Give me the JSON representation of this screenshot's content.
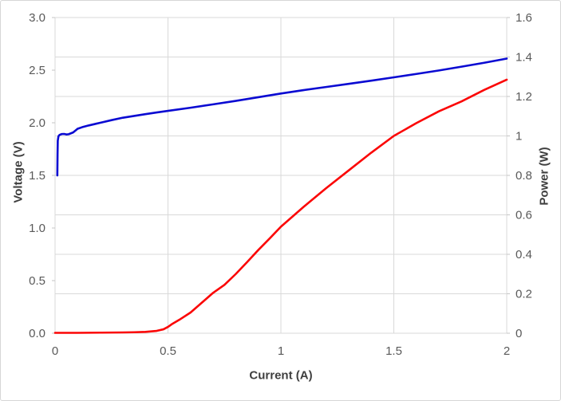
{
  "chart_data": {
    "type": "line",
    "title": "",
    "xlabel": "Current (A)",
    "grid": true,
    "legend": "none",
    "x_axis": {
      "ticks": [
        "0",
        "0.5",
        "1",
        "1.5",
        "2"
      ],
      "tick_values": [
        0,
        0.5,
        1,
        1.5,
        2
      ],
      "lim": [
        0,
        2
      ]
    },
    "left_axis": {
      "label": "Voltage (V)",
      "ticks": [
        "3.0",
        "2.5",
        "2.0",
        "1.5",
        "1.0",
        "0.5",
        "0.0"
      ],
      "tick_values": [
        3.0,
        2.5,
        2.0,
        1.5,
        1.0,
        0.5,
        0.0
      ],
      "lim": [
        0,
        3.0
      ]
    },
    "right_axis": {
      "label": "Power (W)",
      "ticks": [
        "1.6",
        "1.4",
        "1.2",
        "1",
        "0.8",
        "0.6",
        "0.4",
        "0.2",
        "0"
      ],
      "tick_values": [
        1.6,
        1.4,
        1.2,
        1.0,
        0.8,
        0.6,
        0.4,
        0.2,
        0
      ],
      "lim": [
        0,
        1.6
      ]
    },
    "series": [
      {
        "name": "Voltage",
        "axis": "left",
        "color": "#0a0ad2",
        "points": [
          [
            0.01,
            1.5
          ],
          [
            0.011,
            1.7
          ],
          [
            0.012,
            1.83
          ],
          [
            0.015,
            1.872
          ],
          [
            0.02,
            1.885
          ],
          [
            0.03,
            1.893
          ],
          [
            0.04,
            1.894
          ],
          [
            0.05,
            1.889
          ],
          [
            0.06,
            1.891
          ],
          [
            0.08,
            1.908
          ],
          [
            0.1,
            1.943
          ],
          [
            0.12,
            1.958
          ],
          [
            0.15,
            1.975
          ],
          [
            0.18,
            1.99
          ],
          [
            0.2,
            2.0
          ],
          [
            0.25,
            2.025
          ],
          [
            0.3,
            2.048
          ],
          [
            0.35,
            2.065
          ],
          [
            0.4,
            2.082
          ],
          [
            0.45,
            2.098
          ],
          [
            0.5,
            2.113
          ],
          [
            0.6,
            2.143
          ],
          [
            0.7,
            2.175
          ],
          [
            0.8,
            2.208
          ],
          [
            0.9,
            2.243
          ],
          [
            1.0,
            2.278
          ],
          [
            1.1,
            2.31
          ],
          [
            1.2,
            2.34
          ],
          [
            1.3,
            2.37
          ],
          [
            1.4,
            2.4
          ],
          [
            1.5,
            2.432
          ],
          [
            1.6,
            2.464
          ],
          [
            1.7,
            2.497
          ],
          [
            1.8,
            2.533
          ],
          [
            1.9,
            2.57
          ],
          [
            2.0,
            2.61
          ]
        ]
      },
      {
        "name": "Power",
        "axis": "right",
        "color": "#fb0505",
        "points": [
          [
            0.0,
            0.002
          ],
          [
            0.1,
            0.002
          ],
          [
            0.2,
            0.003
          ],
          [
            0.3,
            0.004
          ],
          [
            0.35,
            0.005
          ],
          [
            0.4,
            0.007
          ],
          [
            0.45,
            0.012
          ],
          [
            0.48,
            0.02
          ],
          [
            0.5,
            0.032
          ],
          [
            0.52,
            0.048
          ],
          [
            0.55,
            0.068
          ],
          [
            0.6,
            0.105
          ],
          [
            0.65,
            0.155
          ],
          [
            0.7,
            0.205
          ],
          [
            0.75,
            0.245
          ],
          [
            0.8,
            0.3
          ],
          [
            0.85,
            0.36
          ],
          [
            0.9,
            0.422
          ],
          [
            0.95,
            0.48
          ],
          [
            1.0,
            0.54
          ],
          [
            1.1,
            0.64
          ],
          [
            1.2,
            0.735
          ],
          [
            1.3,
            0.825
          ],
          [
            1.4,
            0.915
          ],
          [
            1.5,
            1.0
          ],
          [
            1.6,
            1.065
          ],
          [
            1.7,
            1.125
          ],
          [
            1.8,
            1.175
          ],
          [
            1.9,
            1.233
          ],
          [
            2.0,
            1.285
          ]
        ]
      }
    ],
    "style": {
      "gridline_color": "#d9d9d9",
      "tick_mark_color": "#c6c6c6",
      "tick_label_color": "#595959",
      "axis_title_color": "#3f3f3f",
      "background": "#ffffff"
    }
  }
}
